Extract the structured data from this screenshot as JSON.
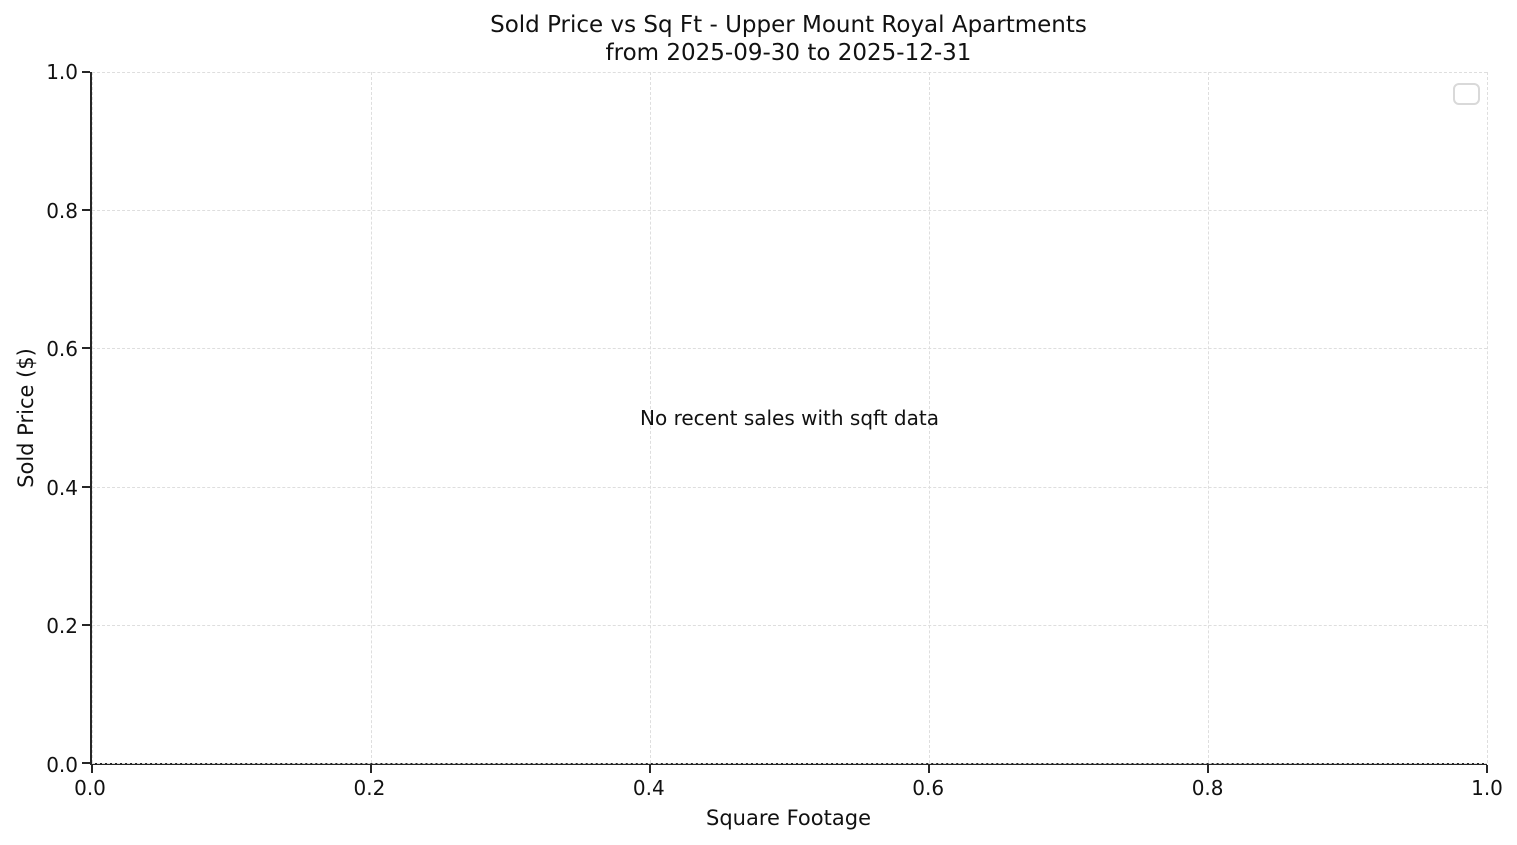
{
  "chart_data": {
    "type": "scatter",
    "title": "Sold Price vs Sq Ft - Upper Mount Royal Apartments",
    "subtitle": "from 2025-09-30 to 2025-12-31",
    "xlabel": "Square Footage",
    "ylabel": "Sold Price ($)",
    "xlim": [
      0.0,
      1.0
    ],
    "ylim": [
      0.0,
      1.0
    ],
    "xticks": [
      "0.0",
      "0.2",
      "0.4",
      "0.6",
      "0.8",
      "1.0"
    ],
    "yticks": [
      "0.0",
      "0.2",
      "0.4",
      "0.6",
      "0.8",
      "1.0"
    ],
    "series": [],
    "points": [],
    "annotation": "No recent sales with sqft data",
    "grid": "dashed",
    "legend": {
      "visible": true,
      "entries": [],
      "position": "upper right"
    },
    "colors": {
      "background": "#ffffff",
      "text": "#111111",
      "spine": "#262626",
      "grid": "#dedede",
      "legend_border": "#d9d9d9"
    }
  }
}
